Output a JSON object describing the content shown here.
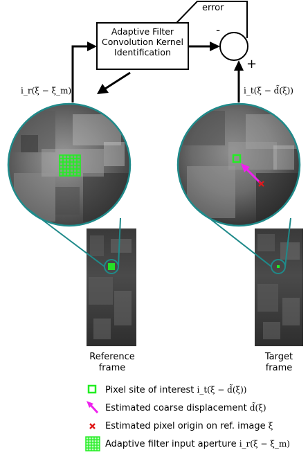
{
  "block": {
    "label_line1": "Adaptive Filter",
    "label_line2": "Convolution Kernel",
    "label_line3": "Identification"
  },
  "summing_junction": {
    "error_label": "error",
    "minus_sign": "-",
    "plus_sign": "+"
  },
  "signals": {
    "reference_input": "i_r(ξ − ξ_m)",
    "target_input": "i_t(ξ − d̃(ξ))"
  },
  "frames": {
    "reference_line1": "Reference",
    "reference_line2": "frame",
    "target_line1": "Target",
    "target_line2": "frame"
  },
  "legend": [
    {
      "icon": "green-square-icon",
      "text": "Pixel site of interest",
      "math": "i_t(ξ − d̃(ξ))"
    },
    {
      "icon": "magenta-arrow-icon",
      "text": "Estimated coarse displacement",
      "math": "d̃(ξ)"
    },
    {
      "icon": "red-x-icon",
      "text": "Estimated pixel origin on ref. image",
      "math": "ξ"
    },
    {
      "icon": "green-grid-icon",
      "text": "Adaptive filter input aperture",
      "math": "i_r(ξ − ξ_m)"
    }
  ],
  "colors": {
    "teal": "#1f8a8a",
    "green": "#22ee22",
    "magenta": "#ee22ee",
    "red": "#e01818"
  }
}
